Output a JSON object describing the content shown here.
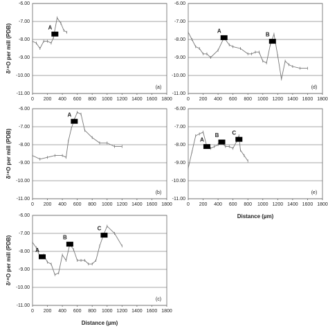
{
  "chart_data": [
    {
      "type": "line",
      "panel_label": "(a)",
      "y_label": "δ¹⁸O per mill (PDB)",
      "color": "#777777",
      "grid": true,
      "xlim": [
        0,
        1800
      ],
      "xticks": [
        0,
        200,
        400,
        600,
        800,
        1000,
        1200,
        1400,
        1600,
        1800
      ],
      "ylim": [
        -11,
        -6
      ],
      "yticks": [
        {
          "value": -6,
          "label": "-6.00"
        },
        {
          "value": -7,
          "label": "-7.00"
        },
        {
          "value": -8,
          "label": "-8.00"
        },
        {
          "value": -9,
          "label": "-9.00"
        },
        {
          "value": -10,
          "label": "-10.00"
        },
        {
          "value": -11,
          "label": "-11.00"
        }
      ],
      "x": [
        0,
        50,
        100,
        150,
        200,
        250,
        280,
        330,
        380,
        420,
        460
      ],
      "values": [
        -8.1,
        -8.2,
        -8.5,
        -8.1,
        -8.1,
        -8.2,
        -7.9,
        -6.8,
        -7.1,
        -7.5,
        -7.6
      ],
      "annotations": [
        {
          "label": "A",
          "x": 300,
          "y": -7.7
        }
      ]
    },
    {
      "type": "line",
      "panel_label": "(b)",
      "y_label": "δ¹⁸O per mill (PDB)",
      "color": "#777777",
      "grid": true,
      "xlim": [
        0,
        1800
      ],
      "xticks": [
        0,
        200,
        400,
        600,
        800,
        1000,
        1200,
        1400,
        1600,
        1800
      ],
      "ylim": [
        -11,
        -6
      ],
      "yticks": [
        {
          "value": -6,
          "label": "-6.00"
        },
        {
          "value": -7,
          "label": "-7.00"
        },
        {
          "value": -8,
          "label": "-8.00"
        },
        {
          "value": -9,
          "label": "-9.00"
        },
        {
          "value": -10,
          "label": "-10.00"
        },
        {
          "value": -11,
          "label": "-11.00"
        }
      ],
      "x": [
        0,
        100,
        200,
        300,
        400,
        450,
        480,
        520,
        560,
        600,
        650,
        700,
        800,
        900,
        1000,
        1100,
        1200
      ],
      "values": [
        -8.6,
        -8.8,
        -8.7,
        -8.6,
        -8.6,
        -8.7,
        -7.8,
        -7.1,
        -6.6,
        -6.2,
        -6.3,
        -7.2,
        -7.6,
        -7.9,
        -7.9,
        -8.1,
        -8.1
      ],
      "annotations": [
        {
          "label": "A",
          "x": 560,
          "y": -6.7
        }
      ]
    },
    {
      "type": "line",
      "panel_label": "(c)",
      "y_label": "δ¹⁸O per mill (PDB)",
      "x_label": "Distance (µm)",
      "color": "#777777",
      "grid": true,
      "xlim": [
        0,
        1800
      ],
      "xticks": [
        0,
        200,
        400,
        600,
        800,
        1000,
        1200,
        1400,
        1600,
        1800
      ],
      "ylim": [
        -11,
        -6
      ],
      "yticks": [
        {
          "value": -6,
          "label": "-6.00"
        },
        {
          "value": -7,
          "label": "-7.00"
        },
        {
          "value": -8,
          "label": "-8.00"
        },
        {
          "value": -9,
          "label": "-9.00"
        },
        {
          "value": -10,
          "label": "-10.00"
        },
        {
          "value": -11,
          "label": "-11.00"
        }
      ],
      "x": [
        0,
        50,
        100,
        150,
        200,
        250,
        300,
        350,
        400,
        450,
        500,
        550,
        600,
        650,
        700,
        750,
        800,
        850,
        900,
        950,
        1000,
        1100,
        1200
      ],
      "values": [
        -7.5,
        -7.8,
        -8.3,
        -8.2,
        -8.6,
        -8.7,
        -9.3,
        -9.2,
        -8.2,
        -8.5,
        -7.6,
        -7.9,
        -8.5,
        -8.5,
        -8.5,
        -8.7,
        -8.7,
        -8.5,
        -7.7,
        -7.1,
        -6.6,
        -7.0,
        -7.7
      ],
      "annotations": [
        {
          "label": "A",
          "x": 130,
          "y": -8.3
        },
        {
          "label": "B",
          "x": 500,
          "y": -7.6
        },
        {
          "label": "C",
          "x": 960,
          "y": -7.1
        }
      ]
    },
    {
      "type": "line",
      "panel_label": "(d)",
      "color": "#777777",
      "grid": true,
      "xlim": [
        0,
        1800
      ],
      "xticks": [
        0,
        200,
        400,
        600,
        800,
        1000,
        1200,
        1400,
        1600,
        1800
      ],
      "ylim": [
        -11,
        -6
      ],
      "yticks": [
        {
          "value": -6,
          "label": "-6.00"
        },
        {
          "value": -7,
          "label": "-7.00"
        },
        {
          "value": -8,
          "label": "-8.00"
        },
        {
          "value": -9,
          "label": "-9.00"
        },
        {
          "value": -10,
          "label": "-10.00"
        },
        {
          "value": -11,
          "label": "-11.00"
        }
      ],
      "x": [
        0,
        50,
        100,
        150,
        200,
        250,
        300,
        400,
        480,
        550,
        600,
        700,
        800,
        850,
        900,
        950,
        1000,
        1050,
        1100,
        1150,
        1200,
        1250,
        1300,
        1350,
        1400,
        1500,
        1600
      ],
      "values": [
        -7.6,
        -8.0,
        -8.4,
        -8.5,
        -8.8,
        -8.8,
        -9.0,
        -8.6,
        -7.9,
        -8.3,
        -8.4,
        -8.5,
        -8.8,
        -8.8,
        -8.7,
        -8.7,
        -9.2,
        -9.3,
        -8.3,
        -7.7,
        -8.9,
        -10.2,
        -9.2,
        -9.4,
        -9.5,
        -9.6,
        -9.6
      ],
      "annotations": [
        {
          "label": "A",
          "x": 480,
          "y": -7.9
        },
        {
          "label": "B",
          "x": 1130,
          "y": -8.1
        }
      ]
    },
    {
      "type": "line",
      "panel_label": "(e)",
      "x_label": "Distance (µm)",
      "color": "#777777",
      "grid": true,
      "xlim": [
        0,
        1800
      ],
      "xticks": [
        0,
        200,
        400,
        600,
        800,
        1000,
        1200,
        1400,
        1600,
        1800
      ],
      "ylim": [
        -11,
        -6
      ],
      "yticks": [
        {
          "value": -6,
          "label": "-6.00"
        },
        {
          "value": -7,
          "label": "-7.00"
        },
        {
          "value": -8,
          "label": "-8.00"
        },
        {
          "value": -9,
          "label": "-9.00"
        },
        {
          "value": -10,
          "label": "-10.00"
        },
        {
          "value": -11,
          "label": "-11.00"
        }
      ],
      "x": [
        0,
        50,
        100,
        150,
        200,
        250,
        300,
        350,
        400,
        450,
        500,
        550,
        600,
        650,
        680,
        700,
        750,
        800
      ],
      "values": [
        -9.3,
        -8.4,
        -7.5,
        -7.4,
        -7.3,
        -8.1,
        -8.2,
        -8.1,
        -8.0,
        -7.9,
        -8.1,
        -8.1,
        -8.2,
        -7.8,
        -7.5,
        -8.3,
        -8.6,
        -8.9
      ],
      "annotations": [
        {
          "label": "A",
          "x": 250,
          "y": -8.1
        },
        {
          "label": "B",
          "x": 450,
          "y": -7.85
        },
        {
          "label": "C",
          "x": 680,
          "y": -7.7
        }
      ]
    }
  ]
}
